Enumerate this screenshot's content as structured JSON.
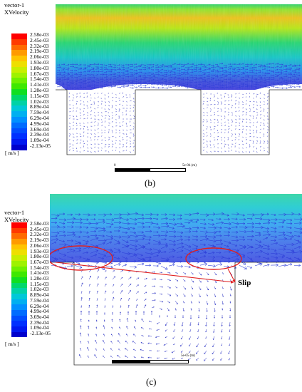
{
  "panel_b": {
    "legend_title": [
      "vector-1",
      "XVelocity"
    ],
    "ticks": [
      "2.58e-03",
      "2.45e-03",
      "2.32e-03",
      "2.19e-03",
      "2.06e-03",
      "1.93e-03",
      "1.80e-03",
      "1.67e-03",
      "1.54e-03",
      "1.41e-03",
      "1.28e-03",
      "1.15e-03",
      "1.02e-03",
      "8.89e-04",
      "7.59e-04",
      "6.29e-04",
      "4.99e-04",
      "3.69e-04",
      "2.39e-04",
      "1.09e-04",
      "-2.13e-05"
    ],
    "unit": "[ m/s ]",
    "scale_left": "0",
    "scale_right": "5e-04 (m)",
    "caption": "(b)"
  },
  "panel_c": {
    "legend_title": [
      "vector-1",
      "XVelocity"
    ],
    "ticks": [
      "2.58e-03",
      "2.45e-03",
      "2.32e-03",
      "2.19e-03",
      "2.06e-03",
      "1.93e-03",
      "1.80e-03",
      "1.67e-03",
      "1.54e-03",
      "1.41e-03",
      "1.28e-03",
      "1.15e-03",
      "1.02e-03",
      "8.89e-04",
      "7.59e-04",
      "6.29e-04",
      "4.99e-04",
      "3.69e-04",
      "2.39e-04",
      "1.09e-04",
      "-2.13e-05"
    ],
    "unit": "[ m/s ]",
    "scale_right": "5e-05 (m)",
    "slip_label": "Slip",
    "caption": "(c)"
  },
  "colors": {
    "colormap": [
      "#ff0000",
      "#ff3a00",
      "#ff6a00",
      "#ff9a00",
      "#ffc400",
      "#eedf00",
      "#c8ef00",
      "#9ef200",
      "#6ef000",
      "#3ee800",
      "#10df20",
      "#00d86a",
      "#00d2a6",
      "#00c8d8",
      "#00b0f0",
      "#0090ff",
      "#006cff",
      "#004cff",
      "#0030ff",
      "#0018f0",
      "#0000cc"
    ],
    "vector_low": "#2f3fd8",
    "annotation": "#e02020"
  }
}
